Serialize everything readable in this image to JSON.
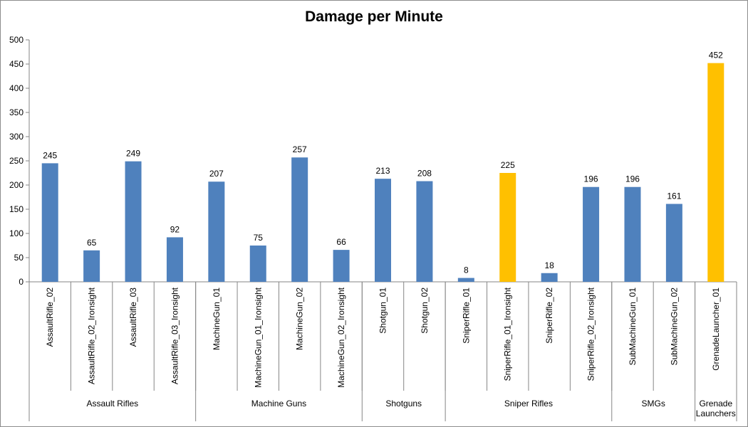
{
  "chart_data": {
    "type": "bar",
    "title": "Damage per Minute",
    "ylim": [
      0,
      500
    ],
    "yticks": [
      0,
      50,
      100,
      150,
      200,
      250,
      300,
      350,
      400,
      450,
      500
    ],
    "categories": [
      "AssaultRifle_02",
      "AssaultRifle_02_Ironsight",
      "AssaultRifle_03",
      "AssaultRifle_03_Ironsight",
      "MachineGun_01",
      "MachineGun_01_Ironsight",
      "MachineGun_02",
      "MachineGun_02_Ironsight",
      "Shotgun_01",
      "Shotgun_02",
      "SniperRifle_01",
      "SniperRifle_01_Ironsight",
      "SniperRifle_02",
      "SniperRifle_02_Ironsight",
      "SubMachineGun_01",
      "SubMachineGun_02",
      "GrenadeLauncher_01"
    ],
    "values": [
      245,
      65,
      249,
      92,
      207,
      75,
      257,
      66,
      213,
      208,
      8,
      225,
      18,
      196,
      196,
      161,
      452
    ],
    "highlighted": [
      11,
      16
    ],
    "groups": [
      {
        "label": "Assault Rifles",
        "start": 0,
        "count": 4
      },
      {
        "label": "Machine Guns",
        "start": 4,
        "count": 4
      },
      {
        "label": "Shotguns",
        "start": 8,
        "count": 2
      },
      {
        "label": "Sniper Rifles",
        "start": 10,
        "count": 4
      },
      {
        "label": "SMGs",
        "start": 14,
        "count": 2
      },
      {
        "label": "Grenade Launchers",
        "start": 16,
        "count": 1,
        "lines": [
          "Grenade",
          "Launchers"
        ]
      }
    ],
    "colors": {
      "bar": "#4f81bd",
      "highlight": "#ffc000",
      "axis": "#868686"
    }
  }
}
